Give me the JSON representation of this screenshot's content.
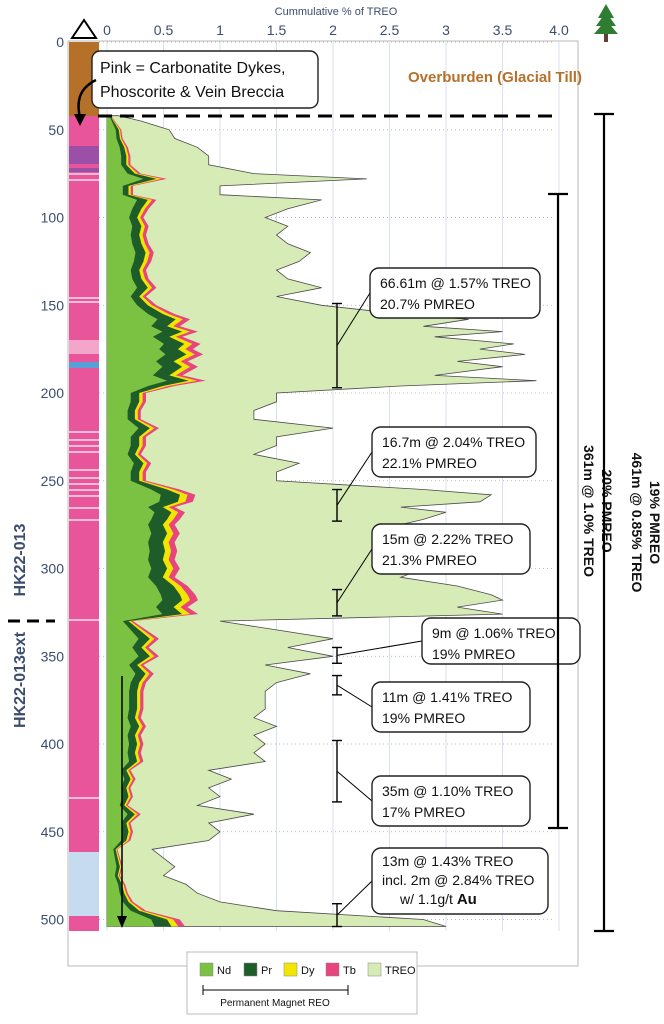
{
  "chart_data": {
    "type": "area",
    "title": "",
    "xlabel": "Cummulative % of TREO",
    "ylabel": "",
    "xlim": [
      0,
      4.2
    ],
    "ylim": [
      0,
      508
    ],
    "y_reversed": true,
    "x_ticks": [
      "0",
      "0.5",
      "1",
      "1.5",
      "2",
      "2.5",
      "3",
      "3.5",
      "4.0"
    ],
    "y_ticks": [
      "0",
      "50",
      "100",
      "150",
      "200",
      "250",
      "300",
      "350",
      "400",
      "450",
      "500"
    ],
    "grid": "dotted horizontal and vertical",
    "legend_position": "bottom",
    "stack_order": [
      "Nd",
      "Pr",
      "Dy",
      "Tb",
      "TREO"
    ],
    "legend": [
      {
        "name": "Nd",
        "color": "#7cc242"
      },
      {
        "name": "Pr",
        "color": "#1e5c2a"
      },
      {
        "name": "Dy",
        "color": "#f2e500"
      },
      {
        "name": "Tb",
        "color": "#e8457f"
      },
      {
        "name": "TREO",
        "color": "#d6ebb6"
      }
    ],
    "legend_group_label": "Permanent Magnet REO",
    "treo_profile": {
      "depth": [
        42,
        45,
        50,
        55,
        60,
        65,
        70,
        75,
        78,
        82,
        87,
        90,
        95,
        100,
        105,
        110,
        115,
        120,
        125,
        130,
        135,
        140,
        145,
        150,
        155,
        158,
        162,
        165,
        168,
        172,
        175,
        178,
        182,
        185,
        190,
        193,
        196,
        200,
        205,
        210,
        215,
        220,
        225,
        230,
        235,
        240,
        245,
        250,
        255,
        258,
        262,
        265,
        268,
        272,
        275,
        280,
        285,
        290,
        295,
        300,
        305,
        310,
        315,
        318,
        322,
        326,
        330,
        335,
        340,
        345,
        350,
        355,
        360,
        365,
        370,
        375,
        380,
        385,
        390,
        395,
        400,
        405,
        410,
        415,
        420,
        425,
        430,
        435,
        440,
        445,
        450,
        455,
        460,
        465,
        470,
        475,
        480,
        485,
        490,
        495,
        500,
        504
      ],
      "treo": [
        0.1,
        0.3,
        0.55,
        0.6,
        0.8,
        0.9,
        0.9,
        1.3,
        2.3,
        1.0,
        1.0,
        1.9,
        1.6,
        1.4,
        1.6,
        1.5,
        1.6,
        1.8,
        1.7,
        1.5,
        1.6,
        1.9,
        1.5,
        1.9,
        2.6,
        3.2,
        2.8,
        3.5,
        2.9,
        3.6,
        3.3,
        3.7,
        3.1,
        3.5,
        2.9,
        3.8,
        2.6,
        1.5,
        1.5,
        1.3,
        1.3,
        2.0,
        1.5,
        1.5,
        1.3,
        1.7,
        1.5,
        1.5,
        2.8,
        3.4,
        3.3,
        2.6,
        3.0,
        2.8,
        2.6,
        2.8,
        2.6,
        2.7,
        2.6,
        2.8,
        2.6,
        3.1,
        3.4,
        3.5,
        3.1,
        3.5,
        1.0,
        1.5,
        2.0,
        1.6,
        2.0,
        1.4,
        1.8,
        1.5,
        1.4,
        1.4,
        1.4,
        1.3,
        1.5,
        1.3,
        1.4,
        1.3,
        1.4,
        0.9,
        1.1,
        0.9,
        1.0,
        0.8,
        1.3,
        0.9,
        1.0,
        0.9,
        0.4,
        0.5,
        0.6,
        0.5,
        0.7,
        0.8,
        1.0,
        1.5,
        2.8,
        3.0
      ]
    },
    "pmreo_fraction": 0.2,
    "annotations": {
      "overburden": "Overburden (Glacial Till)",
      "pink_note": [
        "Pink = Carbonatite Dykes,",
        "Phoscorite & Vein Breccia"
      ],
      "hole_upper": "HK22-013",
      "hole_lower": "HK22-013ext",
      "overall_interval": [
        "461m @ 0.85% TREO",
        "19% PMREO"
      ],
      "upper_interval": [
        "361m @ 1.0% TREO",
        "20% PMREO"
      ],
      "intervals": [
        {
          "from": 149,
          "to": 197,
          "lines": [
            "66.61m @ 1.57% TREO",
            "20.7% PMREO"
          ]
        },
        {
          "from": 255,
          "to": 273,
          "lines": [
            "16.7m @ 2.04% TREO",
            "22.1% PMREO"
          ]
        },
        {
          "from": 312,
          "to": 327,
          "lines": [
            "15m @ 2.22% TREO",
            "21.3% PMREO"
          ]
        },
        {
          "from": 345,
          "to": 354,
          "lines": [
            "9m @ 1.06% TREO",
            "19% PMREO"
          ]
        },
        {
          "from": 361,
          "to": 372,
          "lines": [
            "11m @ 1.41% TREO",
            "19% PMREO"
          ]
        },
        {
          "from": 398,
          "to": 433,
          "lines": [
            "35m @ 1.10% TREO",
            "17% PMREO"
          ]
        },
        {
          "from": 491,
          "to": 504,
          "lines": [
            "13m @ 1.43% TREO",
            "incl. 2m @ 2.84% TREO",
            "w/ 1.1g/t ",
            "Au"
          ]
        }
      ]
    }
  },
  "colors": {
    "overburden": "#b5702a",
    "carbonatite_pink": "#e8559a",
    "purple": "#9b4fa6",
    "light_blue": "#c6dbef",
    "treo_fill": "#d6ebb6",
    "nd_fill": "#7cc242",
    "axis_label": "#3b4d6e"
  },
  "icons": [
    "tree-icon",
    "triangle-icon"
  ]
}
